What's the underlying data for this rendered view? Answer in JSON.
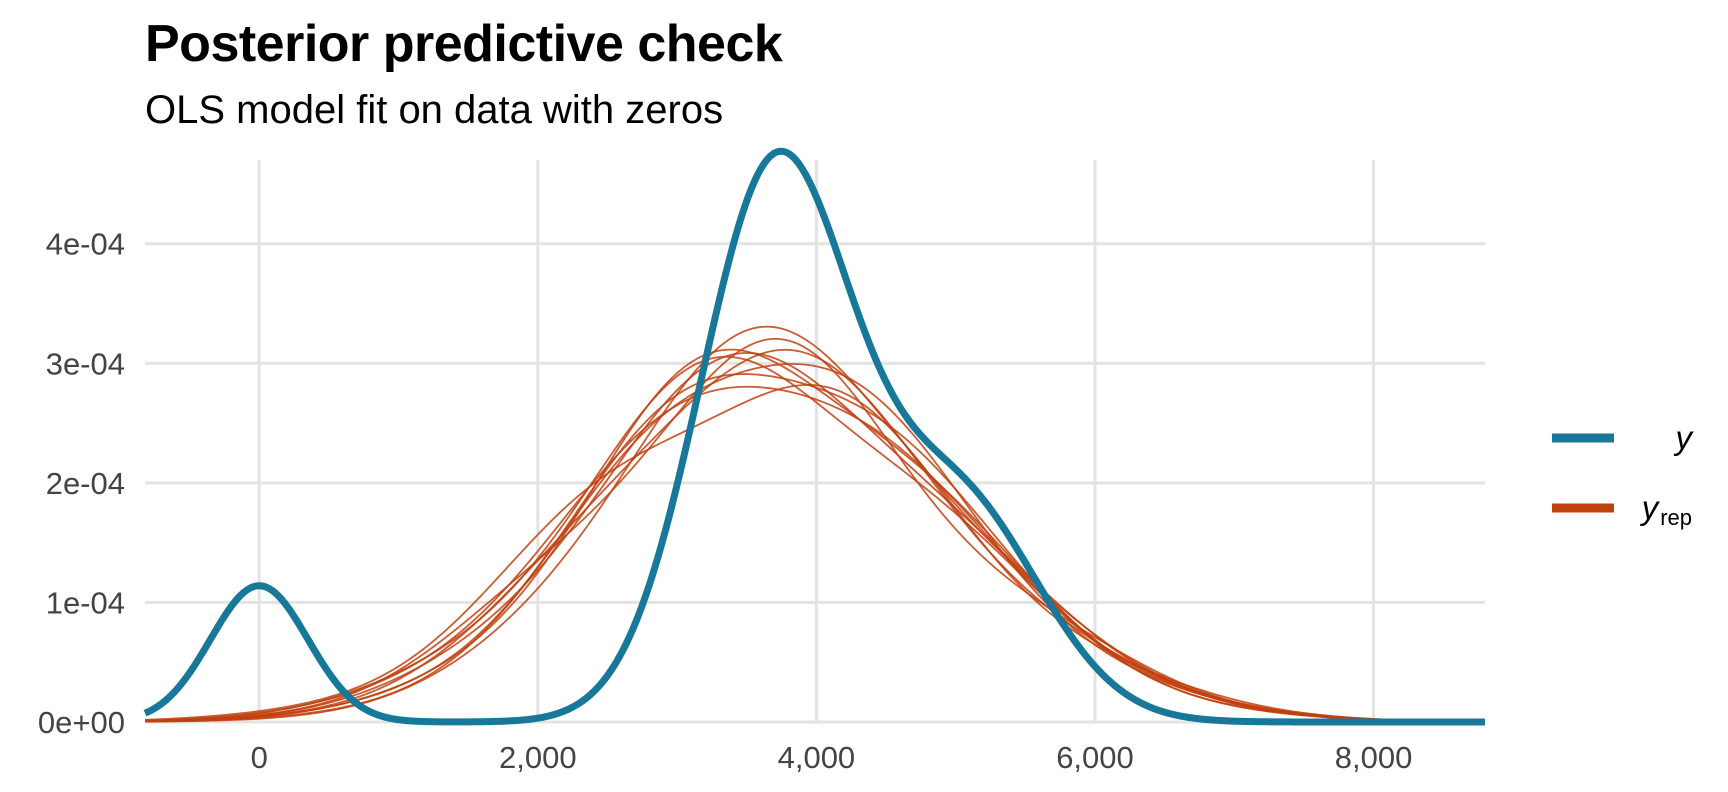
{
  "chart_data": {
    "type": "line",
    "title": "Posterior predictive check",
    "subtitle": "OLS model fit on data with zeros",
    "xlabel": "",
    "ylabel": "",
    "xlim": [
      -820,
      8800
    ],
    "ylim": [
      0,
      0.00047
    ],
    "x_ticks": [
      0,
      2000,
      4000,
      6000,
      8000
    ],
    "x_tick_labels": [
      "0",
      "2,000",
      "4,000",
      "6,000",
      "8,000"
    ],
    "y_ticks": [
      0,
      0.0001,
      0.0002,
      0.0003,
      0.0004
    ],
    "y_tick_labels": [
      "0e+00",
      "1e-04",
      "2e-04",
      "3e-04",
      "4e-04"
    ],
    "grid": true,
    "legend_position": "right",
    "legend": [
      {
        "key": "y",
        "label": "y",
        "subscript": "",
        "color": "#17789A"
      },
      {
        "key": "yrep",
        "label": "y",
        "subscript": "rep",
        "color": "#C1410F"
      }
    ],
    "series": [
      {
        "name": "y",
        "color": "#17789A",
        "components": [
          {
            "w": 0.1,
            "mu": 0,
            "sd": 350
          },
          {
            "w": 0.62,
            "mu": 3700,
            "sd": 540
          },
          {
            "w": 0.28,
            "mu": 5000,
            "sd": 600
          }
        ]
      },
      {
        "name": "yrep",
        "color": "#C1410F",
        "draws": [
          {
            "mu": 3800,
            "sd": 1340,
            "skew": 0.12,
            "wig": 0.05,
            "ph": 0.3
          },
          {
            "mu": 3850,
            "sd": 1300,
            "skew": 0.18,
            "wig": 0.07,
            "ph": 1.1
          },
          {
            "mu": 3750,
            "sd": 1380,
            "skew": 0.1,
            "wig": 0.04,
            "ph": 2.0
          },
          {
            "mu": 3900,
            "sd": 1290,
            "skew": 0.2,
            "wig": 0.06,
            "ph": 2.7
          },
          {
            "mu": 3700,
            "sd": 1410,
            "skew": 0.08,
            "wig": 0.08,
            "ph": 3.5
          },
          {
            "mu": 3820,
            "sd": 1330,
            "skew": 0.15,
            "wig": 0.05,
            "ph": 4.3
          },
          {
            "mu": 3780,
            "sd": 1360,
            "skew": 0.14,
            "wig": 0.09,
            "ph": 5.0
          },
          {
            "mu": 3950,
            "sd": 1280,
            "skew": 0.22,
            "wig": 0.04,
            "ph": 5.8
          },
          {
            "mu": 3720,
            "sd": 1350,
            "skew": 0.11,
            "wig": 0.07,
            "ph": 0.8
          },
          {
            "mu": 3870,
            "sd": 1320,
            "skew": 0.17,
            "wig": 0.06,
            "ph": 1.9
          }
        ]
      }
    ]
  }
}
